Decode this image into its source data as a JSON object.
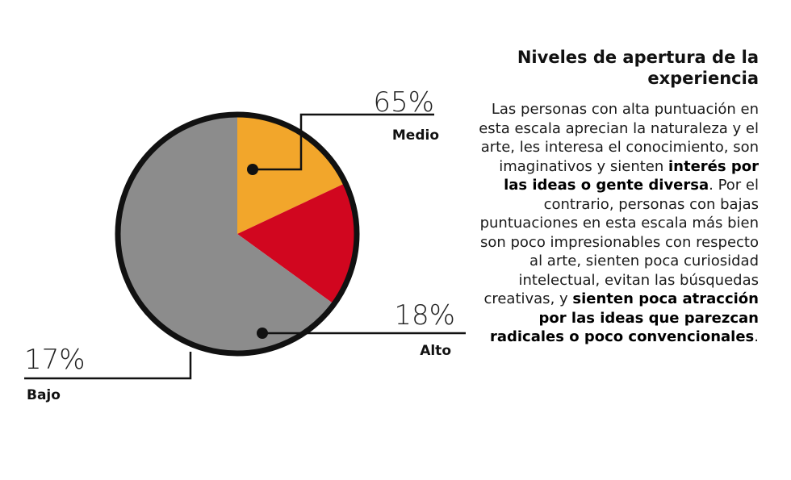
{
  "chart_data": {
    "type": "pie",
    "slices": [
      {
        "label": "Medio",
        "value": 65,
        "value_label": "65%",
        "color": "#8c8c8c"
      },
      {
        "label": "Alto",
        "value": 18,
        "value_label": "18%",
        "color": "#f2a62b"
      },
      {
        "label": "Bajo",
        "value": 17,
        "value_label": "17%",
        "color": "#d1061f"
      }
    ]
  },
  "side_text": {
    "title": "Niveles de apertura de la experiencia",
    "body_1": "Las personas con alta puntuación en esta escala aprecian la naturaleza y el arte, les interesa el conocimiento, son imaginativos y sienten ",
    "body_bold_1": "interés por las ideas o gente diversa",
    "body_2": ". Por el contrario, personas con bajas puntuaciones en esta escala más bien son poco impresionables con respecto al arte, sienten poca curiosidad intelectual, evitan las búsquedas creativas, y ",
    "body_bold_2": "sienten poca atracción por las ideas que parezcan radicales o poco convencionales",
    "body_3": "."
  }
}
